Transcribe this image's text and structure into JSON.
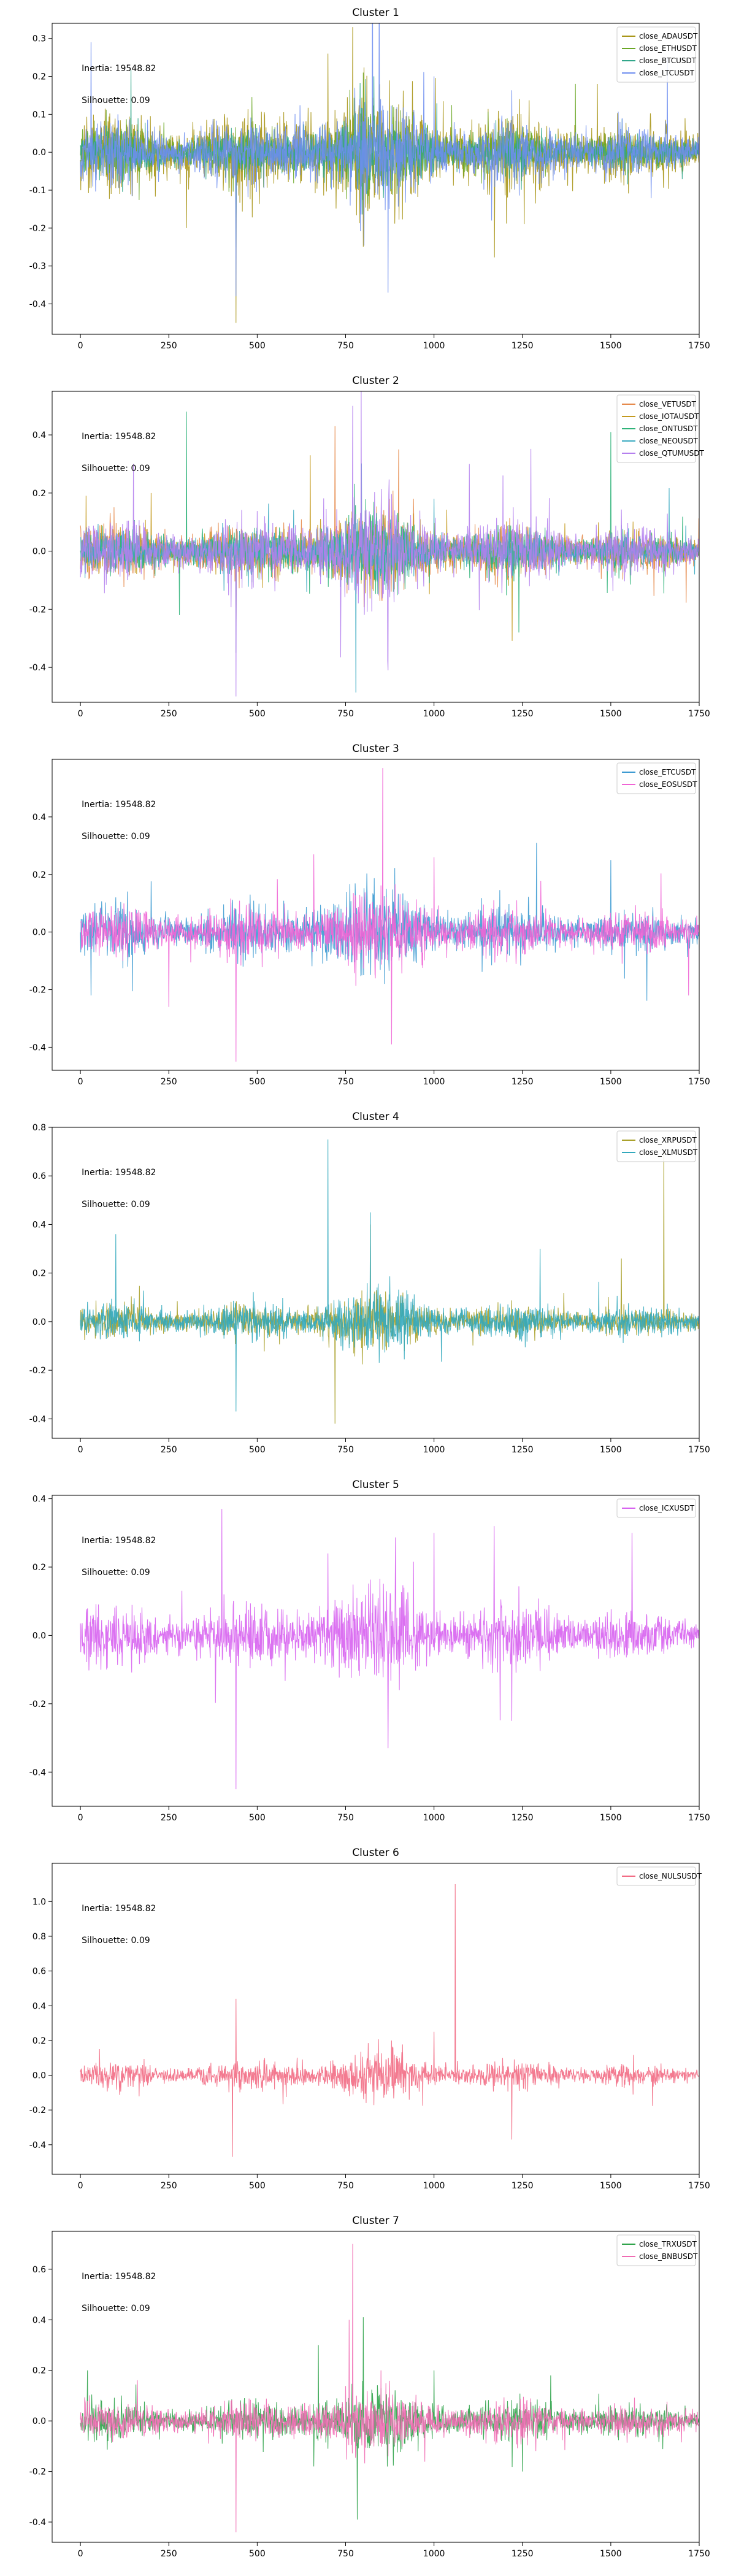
{
  "figure": {
    "annotations": {
      "inertia": "Inertia: 19548.82",
      "silhouette": "Silhouette: 0.09"
    }
  },
  "chart_data": [
    {
      "type": "line",
      "title": "Cluster 1",
      "xlim": [
        -80,
        1750
      ],
      "ylim": [
        -0.48,
        0.34
      ],
      "xticks": [
        0,
        250,
        500,
        750,
        1000,
        1250,
        1500,
        1750
      ],
      "yticks": [
        -0.4,
        -0.3,
        -0.2,
        -0.1,
        0.0,
        0.1,
        0.2,
        0.3
      ],
      "ytick_labels": [
        "-0.4",
        "-0.3",
        "-0.2",
        "-0.1",
        "0.0",
        "0.1",
        "0.2",
        "0.3"
      ],
      "legend": "top-right",
      "series": [
        {
          "name": "close_ADAUSDT",
          "color": "#a89516",
          "amp": 0.055,
          "spikes": [
            [
              770,
              0.33
            ],
            [
              440,
              -0.45
            ],
            [
              700,
              0.26
            ],
            [
              300,
              -0.2
            ]
          ]
        },
        {
          "name": "close_ETHUSDT",
          "color": "#6aa726",
          "amp": 0.035,
          "spikes": [
            [
              800,
              0.21
            ],
            [
              440,
              -0.25
            ],
            [
              1400,
              0.18
            ]
          ]
        },
        {
          "name": "close_BTCUSDT",
          "color": "#31a68a",
          "amp": 0.03,
          "spikes": [
            [
              440,
              -0.23
            ],
            [
              830,
              0.2
            ]
          ]
        },
        {
          "name": "close_LTCUSDT",
          "color": "#6e8ef0",
          "amp": 0.045,
          "spikes": [
            [
              30,
              0.29
            ],
            [
              440,
              -0.38
            ],
            [
              870,
              -0.37
            ],
            [
              1660,
              0.25
            ],
            [
              1000,
              0.2
            ]
          ]
        }
      ]
    },
    {
      "type": "line",
      "title": "Cluster 2",
      "xlim": [
        -80,
        1750
      ],
      "ylim": [
        -0.52,
        0.55
      ],
      "xticks": [
        0,
        250,
        500,
        750,
        1000,
        1250,
        1500,
        1750
      ],
      "yticks": [
        -0.4,
        -0.2,
        0.0,
        0.2,
        0.4
      ],
      "ytick_labels": [
        "-0.4",
        "-0.2",
        "0.0",
        "0.2",
        "0.4"
      ],
      "legend": "top-right",
      "series": [
        {
          "name": "close_VETUSDT",
          "color": "#e6894a",
          "amp": 0.045,
          "spikes": [
            [
              720,
              0.43
            ],
            [
              900,
              0.35
            ],
            [
              440,
              -0.35
            ]
          ]
        },
        {
          "name": "close_IOTAUSDT",
          "color": "#c49a1f",
          "amp": 0.04,
          "spikes": [
            [
              650,
              0.33
            ],
            [
              200,
              0.2
            ]
          ]
        },
        {
          "name": "close_ONTUSDT",
          "color": "#2fb379",
          "amp": 0.04,
          "spikes": [
            [
              300,
              0.48
            ],
            [
              1500,
              0.41
            ],
            [
              1240,
              -0.28
            ],
            [
              280,
              -0.22
            ]
          ]
        },
        {
          "name": "close_NEOUSDT",
          "color": "#3aaac1",
          "amp": 0.035,
          "spikes": [
            [
              440,
              -0.35
            ],
            [
              1000,
              0.18
            ]
          ]
        },
        {
          "name": "close_QTUMUSDT",
          "color": "#b47fee",
          "amp": 0.055,
          "spikes": [
            [
              770,
              0.5
            ],
            [
              440,
              -0.5
            ],
            [
              870,
              -0.41
            ],
            [
              150,
              0.3
            ],
            [
              1100,
              0.3
            ]
          ]
        }
      ]
    },
    {
      "type": "line",
      "title": "Cluster 3",
      "xlim": [
        -80,
        1750
      ],
      "ylim": [
        -0.48,
        0.6
      ],
      "xticks": [
        0,
        250,
        500,
        750,
        1000,
        1250,
        1500,
        1750
      ],
      "yticks": [
        -0.4,
        -0.2,
        0.0,
        0.2,
        0.4
      ],
      "ytick_labels": [
        "-0.4",
        "-0.2",
        "0.0",
        "0.2",
        "0.4"
      ],
      "legend": "top-right",
      "series": [
        {
          "name": "close_ETCUSDT",
          "color": "#3c9ad2",
          "amp": 0.045,
          "spikes": [
            [
              860,
              0.46
            ],
            [
              1290,
              0.31
            ],
            [
              1500,
              0.25
            ],
            [
              30,
              -0.22
            ],
            [
              860,
              -0.18
            ]
          ]
        },
        {
          "name": "close_EOSUSDT",
          "color": "#f064d5",
          "amp": 0.045,
          "spikes": [
            [
              855,
              0.57
            ],
            [
              440,
              -0.45
            ],
            [
              880,
              -0.39
            ],
            [
              250,
              -0.26
            ],
            [
              1000,
              0.26
            ],
            [
              1720,
              -0.22
            ]
          ]
        }
      ]
    },
    {
      "type": "line",
      "title": "Cluster 4",
      "xlim": [
        -80,
        1750
      ],
      "ylim": [
        -0.48,
        0.8
      ],
      "xticks": [
        0,
        250,
        500,
        750,
        1000,
        1250,
        1500,
        1750
      ],
      "yticks": [
        -0.4,
        -0.2,
        0.0,
        0.2,
        0.4,
        0.6,
        0.8
      ],
      "ytick_labels": [
        "-0.4",
        "-0.2",
        "0.0",
        "0.2",
        "0.4",
        "0.6",
        "0.8"
      ],
      "legend": "top-right",
      "series": [
        {
          "name": "close_XRPUSDT",
          "color": "#a9a029",
          "amp": 0.035,
          "spikes": [
            [
              720,
              -0.42
            ],
            [
              1650,
              0.7
            ],
            [
              1530,
              0.26
            ],
            [
              820,
              0.4
            ]
          ]
        },
        {
          "name": "close_XLMUSDT",
          "color": "#32a9bd",
          "amp": 0.04,
          "spikes": [
            [
              700,
              0.75
            ],
            [
              820,
              0.45
            ],
            [
              440,
              -0.37
            ],
            [
              100,
              0.36
            ],
            [
              1300,
              0.3
            ]
          ]
        }
      ]
    },
    {
      "type": "line",
      "title": "Cluster 5",
      "xlim": [
        -80,
        1750
      ],
      "ylim": [
        -0.5,
        0.41
      ],
      "xticks": [
        0,
        250,
        500,
        750,
        1000,
        1250,
        1500,
        1750
      ],
      "yticks": [
        -0.4,
        -0.2,
        0.0,
        0.2,
        0.4
      ],
      "ytick_labels": [
        "-0.4",
        "-0.2",
        "0.0",
        "0.2",
        "0.4"
      ],
      "legend": "top-right",
      "series": [
        {
          "name": "close_ICXUSDT",
          "color": "#d762f0",
          "amp": 0.045,
          "spikes": [
            [
              400,
              0.37
            ],
            [
              440,
              -0.45
            ],
            [
              870,
              -0.33
            ],
            [
              1170,
              0.32
            ],
            [
              1560,
              0.3
            ],
            [
              1000,
              0.3
            ],
            [
              1220,
              -0.25
            ],
            [
              700,
              0.24
            ]
          ]
        }
      ]
    },
    {
      "type": "line",
      "title": "Cluster 6",
      "xlim": [
        -80,
        1750
      ],
      "ylim": [
        -0.57,
        1.22
      ],
      "xticks": [
        0,
        250,
        500,
        750,
        1000,
        1250,
        1500,
        1750
      ],
      "yticks": [
        -0.4,
        -0.2,
        0.0,
        0.2,
        0.4,
        0.6,
        0.8,
        1.0
      ],
      "ytick_labels": [
        "-0.4",
        "-0.2",
        "0.0",
        "0.2",
        "0.4",
        "0.6",
        "0.8",
        "1.0"
      ],
      "legend": "top-right",
      "series": [
        {
          "name": "close_NULSUSDT",
          "color": "#f26b84",
          "amp": 0.04,
          "spikes": [
            [
              1060,
              1.1
            ],
            [
              440,
              0.44
            ],
            [
              430,
              -0.47
            ],
            [
              1220,
              -0.37
            ],
            [
              1000,
              0.25
            ],
            [
              880,
              0.2
            ]
          ]
        }
      ]
    },
    {
      "type": "line",
      "title": "Cluster 7",
      "xlim": [
        -80,
        1750
      ],
      "ylim": [
        -0.48,
        0.75
      ],
      "xticks": [
        0,
        250,
        500,
        750,
        1000,
        1250,
        1500,
        1750
      ],
      "yticks": [
        -0.4,
        -0.2,
        0.0,
        0.2,
        0.4,
        0.6
      ],
      "ytick_labels": [
        "-0.4",
        "-0.2",
        "0.0",
        "0.2",
        "0.4",
        "0.6"
      ],
      "legend": "top-right",
      "series": [
        {
          "name": "close_TRXUSDT",
          "color": "#2fa34a",
          "amp": 0.04,
          "spikes": [
            [
              800,
              0.41
            ],
            [
              20,
              0.2
            ],
            [
              1000,
              0.2
            ],
            [
              1250,
              -0.2
            ],
            [
              1330,
              0.18
            ]
          ]
        },
        {
          "name": "close_BNBUSDT",
          "color": "#f06bb3",
          "amp": 0.04,
          "spikes": [
            [
              770,
              0.7
            ],
            [
              440,
              -0.44
            ],
            [
              760,
              0.4
            ],
            [
              850,
              0.2
            ]
          ]
        }
      ]
    }
  ]
}
